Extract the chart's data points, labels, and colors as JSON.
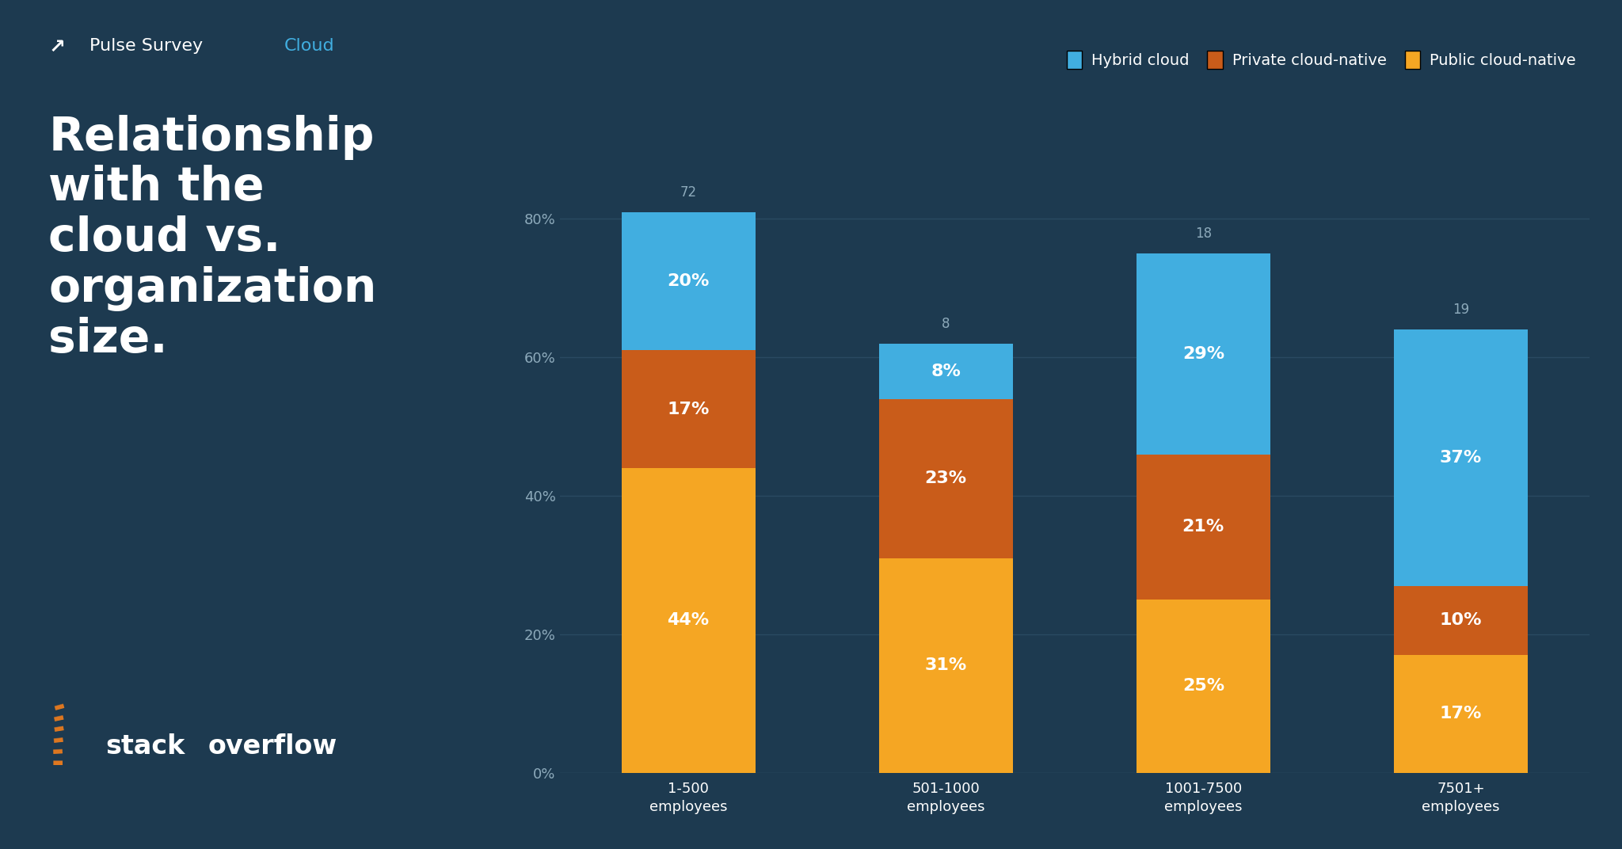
{
  "background_color": "#1d3a50",
  "categories": [
    "1-500\nemployees",
    "501-1000\nemployees",
    "1001-7500\nemployees",
    "7501+\nemployees"
  ],
  "respondents": [
    72,
    8,
    18,
    19
  ],
  "public_cloud_native": [
    44,
    31,
    25,
    17
  ],
  "private_cloud_native": [
    17,
    23,
    21,
    10
  ],
  "hybrid_cloud": [
    20,
    8,
    29,
    37
  ],
  "colors": {
    "public_cloud_native": "#f5a623",
    "private_cloud_native": "#c95c1a",
    "hybrid_cloud": "#41aee0"
  },
  "grid_color": "#2a4a62",
  "text_gray": "#8daabb",
  "white": "#ffffff",
  "blue_accent": "#41aee0",
  "orange_accent": "#e07820",
  "ytick_values": [
    0,
    20,
    40,
    60,
    80
  ],
  "bar_width": 0.52,
  "figsize": [
    20.48,
    10.72
  ],
  "dpi": 100
}
